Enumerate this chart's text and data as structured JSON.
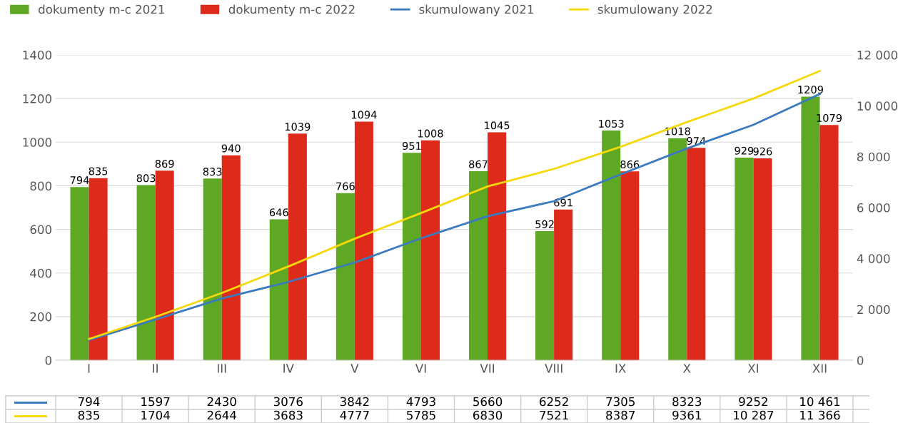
{
  "chart_data": {
    "type": "bar",
    "categories": [
      "I",
      "II",
      "III",
      "IV",
      "V",
      "VI",
      "VII",
      "VIII",
      "IX",
      "X",
      "XI",
      "XII"
    ],
    "series": [
      {
        "name": "dokumenty m-c 2021",
        "color": "#5ea823",
        "values": [
          794,
          803,
          833,
          646,
          766,
          951,
          867,
          592,
          1053,
          1018,
          929,
          1209
        ]
      },
      {
        "name": "dokumenty m-c 2022",
        "color": "#dd2a1b",
        "values": [
          835,
          869,
          940,
          1039,
          1094,
          1008,
          1045,
          691,
          866,
          974,
          926,
          1079
        ]
      },
      {
        "name": "skumulowany 2021",
        "type": "line",
        "axis": "y2",
        "color": "#3a7abf",
        "values": [
          794,
          1597,
          2430,
          3076,
          3842,
          4793,
          5660,
          6252,
          7305,
          8323,
          9252,
          10461
        ],
        "value_labels": [
          "794",
          "1597",
          "2430",
          "3076",
          "3842",
          "4793",
          "5660",
          "6252",
          "7305",
          "8323",
          "9252",
          "10 461"
        ]
      },
      {
        "name": "skumulowany 2022",
        "type": "line",
        "axis": "y2",
        "color": "#f5d90a",
        "values": [
          835,
          1704,
          2644,
          3683,
          4777,
          5785,
          6830,
          7521,
          8387,
          9361,
          10287,
          11366
        ],
        "value_labels": [
          "835",
          "1704",
          "2644",
          "3683",
          "4777",
          "5785",
          "6830",
          "7521",
          "8387",
          "9361",
          "10 287",
          "11 366"
        ]
      }
    ],
    "ylim": [
      0,
      1400
    ],
    "yticks": [
      0,
      200,
      400,
      600,
      800,
      1000,
      1200,
      1400
    ],
    "y2lim": [
      0,
      12000
    ],
    "y2ticks": [
      {
        "value": 0,
        "label": "0"
      },
      {
        "value": 2000,
        "label": "2 000"
      },
      {
        "value": 4000,
        "label": "4 000"
      },
      {
        "value": 6000,
        "label": "6 000"
      },
      {
        "value": 8000,
        "label": "8 000"
      },
      {
        "value": 10000,
        "label": "10 000"
      },
      {
        "value": 12000,
        "label": "12 000"
      }
    ],
    "grid": "y",
    "legend": "top",
    "data_labels": true
  }
}
